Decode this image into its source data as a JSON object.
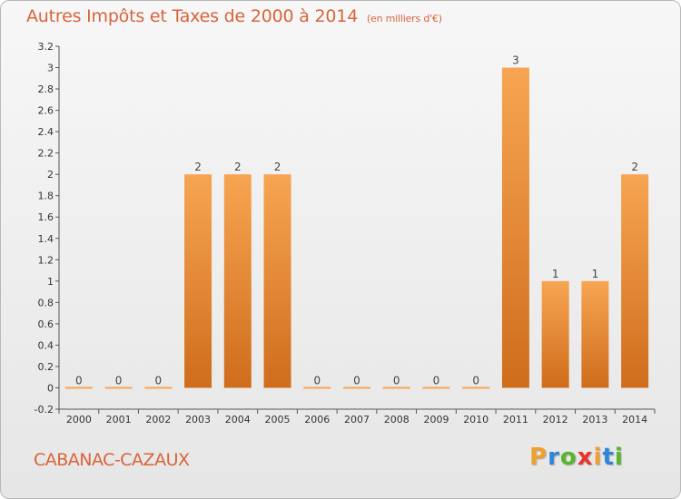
{
  "header": {
    "title": "Autres Impôts et Taxes de 2000 à 2014",
    "unit": "(en milliers d'€)"
  },
  "footer": {
    "commune": "CABANAC-CAZAUX",
    "logo_text": "Proxiti",
    "logo_colors": [
      "#f0a030",
      "#2f86d8",
      "#58b52e",
      "#e8352b",
      "#f0a030",
      "#2f86d8",
      "#58b52e"
    ]
  },
  "colors": {
    "title": "#d8643a",
    "bar_light": "#f7a552",
    "bar_dark": "#cf6d1c",
    "axis": "#555555"
  },
  "chart_data": {
    "type": "bar",
    "categories": [
      "2000",
      "2001",
      "2002",
      "2003",
      "2004",
      "2005",
      "2006",
      "2007",
      "2008",
      "2009",
      "2010",
      "2011",
      "2012",
      "2013",
      "2014"
    ],
    "values": [
      0,
      0,
      0,
      2,
      2,
      2,
      0,
      0,
      0,
      0,
      0,
      3,
      1,
      1,
      2
    ],
    "data_labels": [
      "0",
      "0",
      "0",
      "2",
      "2",
      "2",
      "0",
      "0",
      "0",
      "0",
      "0",
      "3",
      "1",
      "1",
      "2"
    ],
    "ylim": [
      -0.2,
      3.2
    ],
    "yticks": [
      "-0.2",
      "0",
      "0.2",
      "0.4",
      "0.6",
      "0.8",
      "1",
      "1.2",
      "1.4",
      "1.6",
      "1.8",
      "2",
      "2.2",
      "2.4",
      "2.6",
      "2.8",
      "3",
      "3.2"
    ],
    "ytick_values": [
      -0.2,
      0,
      0.2,
      0.4,
      0.6,
      0.8,
      1,
      1.2,
      1.4,
      1.6,
      1.8,
      2,
      2.2,
      2.4,
      2.6,
      2.8,
      3,
      3.2
    ],
    "grid": false,
    "legend": "none"
  }
}
